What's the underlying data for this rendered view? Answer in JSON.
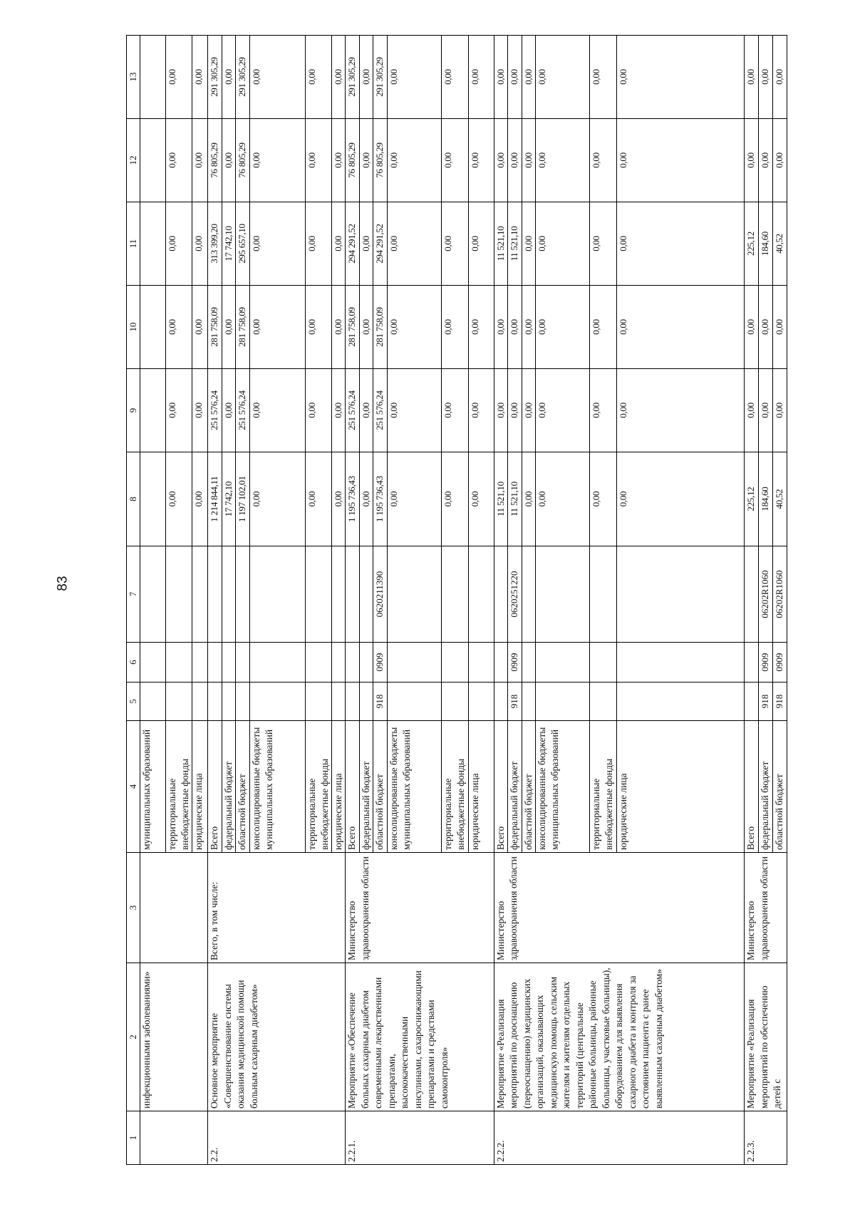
{
  "page_number": "83",
  "header": [
    "1",
    "2",
    "3",
    "4",
    "5",
    "6",
    "7",
    "8",
    "9",
    "10",
    "11",
    "12",
    "13"
  ],
  "groups": [
    {
      "num": "",
      "name": "инфекционными заболеваниями»",
      "responsible": "",
      "rows": [
        {
          "source": "муниципальных образований",
          "c5": "",
          "c6": "",
          "c7": "",
          "values": [
            "",
            "",
            "",
            "",
            "",
            ""
          ]
        },
        {
          "source": "территориальные внебюджетные фонды",
          "c5": "",
          "c6": "",
          "c7": "",
          "values": [
            "0,00",
            "0,00",
            "0,00",
            "0,00",
            "0,00",
            "0,00"
          ]
        },
        {
          "source": "юридические лица",
          "c5": "",
          "c6": "",
          "c7": "",
          "values": [
            "0,00",
            "0,00",
            "0,00",
            "0,00",
            "0,00",
            "0,00"
          ]
        }
      ]
    },
    {
      "num": "2.2.",
      "name": "Основное мероприятие «Совершенствование системы оказания медицинской помощи больным сахарным диабетом»",
      "responsible": "Всего, в том числе:",
      "rows": [
        {
          "source": "Всего",
          "c5": "",
          "c6": "",
          "c7": "",
          "values": [
            "1 214 844,11",
            "251 576,24",
            "281 758,09",
            "313 399,20",
            "76 805,29",
            "291 305,29"
          ]
        },
        {
          "source": "федеральный бюджет",
          "c5": "",
          "c6": "",
          "c7": "",
          "values": [
            "17 742,10",
            "0,00",
            "0,00",
            "17 742,10",
            "0,00",
            "0,00"
          ]
        },
        {
          "source": "областной бюджет",
          "c5": "",
          "c6": "",
          "c7": "",
          "values": [
            "1 197 102,01",
            "251 576,24",
            "281 758,09",
            "295 657,10",
            "76 805,29",
            "291 305,29"
          ]
        },
        {
          "source": "консолидированные бюджеты муниципальных образований",
          "c5": "",
          "c6": "",
          "c7": "",
          "values": [
            "0,00",
            "0,00",
            "0,00",
            "0,00",
            "0,00",
            "0,00"
          ]
        },
        {
          "source": "территориальные внебюджетные фонды",
          "c5": "",
          "c6": "",
          "c7": "",
          "values": [
            "0,00",
            "0,00",
            "0,00",
            "0,00",
            "0,00",
            "0,00"
          ]
        },
        {
          "source": "юридические лица",
          "c5": "",
          "c6": "",
          "c7": "",
          "values": [
            "0,00",
            "0,00",
            "0,00",
            "0,00",
            "0,00",
            "0,00"
          ]
        }
      ]
    },
    {
      "num": "2.2.1.",
      "name": "Мероприятие «Обеспечение больных сахарным диабетом современными лекарственными препаратами, высококачественными инсулинами, сахароснижающими препаратами и средствами самоконтроля»",
      "responsible": "Министерство здравоохранения области",
      "rows": [
        {
          "source": "Всего",
          "c5": "",
          "c6": "",
          "c7": "",
          "values": [
            "1 195 736,43",
            "251 576,24",
            "281 758,09",
            "294 291,52",
            "76 805,29",
            "291 305,29"
          ]
        },
        {
          "source": "федеральный бюджет",
          "c5": "",
          "c6": "",
          "c7": "",
          "values": [
            "0,00",
            "0,00",
            "0,00",
            "0,00",
            "0,00",
            "0,00"
          ]
        },
        {
          "source": "областной бюджет",
          "c5": "918",
          "c6": "0909",
          "c7": "0620211390",
          "values": [
            "1 195 736,43",
            "251 576,24",
            "281 758,09",
            "294 291,52",
            "76 805,29",
            "291 305,29"
          ]
        },
        {
          "source": "консолидированные бюджеты муниципальных образований",
          "c5": "",
          "c6": "",
          "c7": "",
          "values": [
            "0,00",
            "0,00",
            "0,00",
            "0,00",
            "0,00",
            "0,00"
          ]
        },
        {
          "source": "территориальные внебюджетные фонды",
          "c5": "",
          "c6": "",
          "c7": "",
          "values": [
            "0,00",
            "0,00",
            "0,00",
            "0,00",
            "0,00",
            "0,00"
          ]
        },
        {
          "source": "юридические лица",
          "c5": "",
          "c6": "",
          "c7": "",
          "values": [
            "0,00",
            "0,00",
            "0,00",
            "0,00",
            "0,00",
            "0,00"
          ]
        }
      ]
    },
    {
      "num": "2.2.2.",
      "name": "Мероприятие «Реализация мероприятий по дооснащению (переоснащению) медицинских организаций, оказывающих медицинскую помощь сельским жителям и жителям отдельных территорий (центральные районные больницы, районные больницы, участковые больницы), оборудованием для выявления сахарного диабета и контроля за состоянием пациента с ранее выявленным сахарным диабетом»",
      "responsible": "Министерство здравоохранения области",
      "rows": [
        {
          "source": "Всего",
          "c5": "",
          "c6": "",
          "c7": "",
          "values": [
            "11 521,10",
            "0,00",
            "0,00",
            "11 521,10",
            "0,00",
            "0,00"
          ]
        },
        {
          "source": "федеральный бюджет",
          "c5": "918",
          "c6": "0909",
          "c7": "0620251220",
          "values": [
            "11 521,10",
            "0,00",
            "0,00",
            "11 521,10",
            "0,00",
            "0,00"
          ]
        },
        {
          "source": "областной бюджет",
          "c5": "",
          "c6": "",
          "c7": "",
          "values": [
            "0,00",
            "0,00",
            "0,00",
            "0,00",
            "0,00",
            "0,00"
          ]
        },
        {
          "source": "консолидированные бюджеты муниципальных образований",
          "c5": "",
          "c6": "",
          "c7": "",
          "values": [
            "0,00",
            "0,00",
            "0,00",
            "0,00",
            "0,00",
            "0,00"
          ]
        },
        {
          "source": "территориальные внебюджетные фонды",
          "c5": "",
          "c6": "",
          "c7": "",
          "values": [
            "0,00",
            "0,00",
            "0,00",
            "0,00",
            "0,00",
            "0,00"
          ]
        },
        {
          "source": "юридические лица",
          "c5": "",
          "c6": "",
          "c7": "",
          "values": [
            "0,00",
            "0,00",
            "0,00",
            "0,00",
            "0,00",
            "0,00"
          ]
        }
      ]
    },
    {
      "num": "2.2.3.",
      "name": "Мероприятие «Реализация мероприятий по обеспечению детей с",
      "responsible": "Министерство здравоохранения области",
      "rows": [
        {
          "source": "Всего",
          "c5": "",
          "c6": "",
          "c7": "",
          "values": [
            "225,12",
            "0,00",
            "0,00",
            "225,12",
            "0,00",
            "0,00"
          ]
        },
        {
          "source": "федеральный бюджет",
          "c5": "918",
          "c6": "0909",
          "c7": "06202R1060",
          "values": [
            "184,60",
            "0,00",
            "0,00",
            "184,60",
            "0,00",
            "0,00"
          ]
        },
        {
          "source": "областной бюджет",
          "c5": "918",
          "c6": "0909",
          "c7": "06202R1060",
          "values": [
            "40,52",
            "0,00",
            "0,00",
            "40,52",
            "0,00",
            "0,00"
          ]
        }
      ]
    }
  ]
}
